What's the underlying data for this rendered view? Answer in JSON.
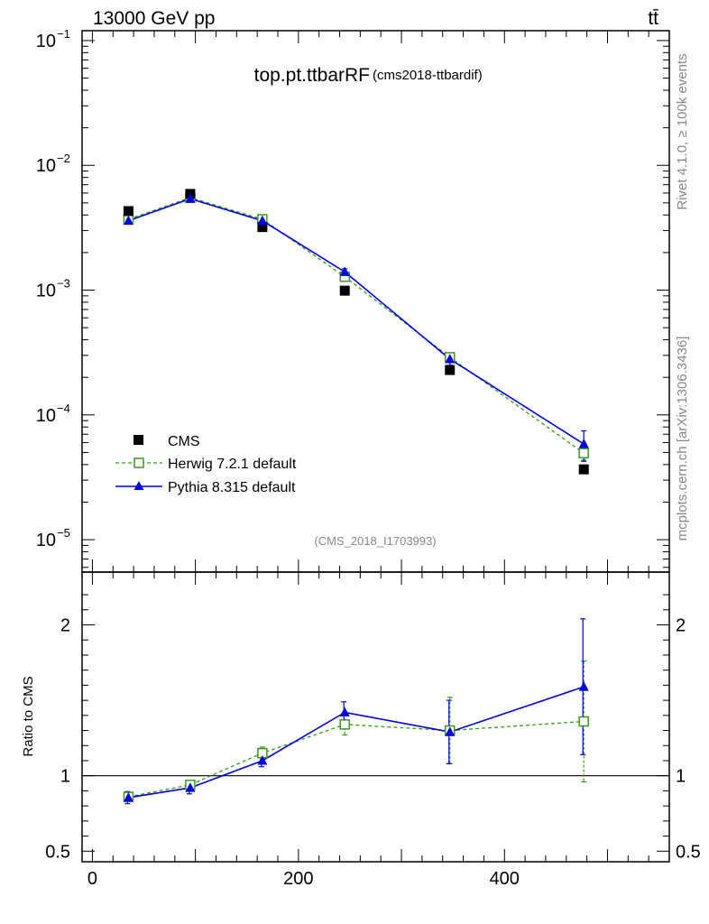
{
  "header": {
    "energy_label": "13000 GeV pp",
    "process_label": "tt̄"
  },
  "side_labels": {
    "rivet": "Rivet 4.1.0, ≥ 100k events",
    "mcplots": "mcplots.cern.ch [arXiv:1306.3436]"
  },
  "chart_data": [
    {
      "panel": "main",
      "type": "line",
      "yscale": "log",
      "title": "top.pt.ttbarRF",
      "subtitle": "(cms2018-ttbardif)",
      "watermark": "(CMS_2018_I1703993)",
      "xlim": [
        -10,
        560
      ],
      "ylim": [
        5.5e-06,
        0.12
      ],
      "ytick_values": [
        1e-05,
        0.0001,
        0.001,
        0.01,
        0.1
      ],
      "ytick_mantissa": "10",
      "ytick_exponents": [
        "−5",
        "−4",
        "−3",
        "−2",
        "−1"
      ],
      "legend_position": "lower-left",
      "series": [
        {
          "name": "CMS",
          "style": "marker-square-filled",
          "color": "#000000",
          "x": [
            35,
            95,
            165,
            245,
            347,
            477
          ],
          "y": [
            0.0043,
            0.0059,
            0.0032,
            0.00099,
            0.000229,
            3.66e-05
          ]
        },
        {
          "name": "Herwig 7.2.1 default",
          "style": "dashed-open-square",
          "color": "#3d9a1f",
          "x": [
            35,
            95,
            165,
            245,
            347,
            477
          ],
          "y": [
            0.0037,
            0.0055,
            0.0037,
            0.00128,
            0.00029,
            4.94e-05
          ],
          "err": [
            0.0001,
            0.0001,
            0.0001,
            5e-05,
            1.5e-05,
            6e-06
          ]
        },
        {
          "name": "Pythia 8.315 default",
          "style": "solid-triangle",
          "color": "#0000dd",
          "x": [
            35,
            95,
            165,
            245,
            347,
            477
          ],
          "y": [
            0.0036,
            0.0054,
            0.0036,
            0.0014,
            0.00028,
            5.85e-05
          ],
          "err": [
            0.0001,
            0.0001,
            0.0001,
            8e-05,
            3e-05,
            1.6e-05
          ]
        }
      ]
    },
    {
      "panel": "ratio",
      "type": "line",
      "ylabel": "Ratio to CMS",
      "xlim": [
        -10,
        560
      ],
      "ylim": [
        0.43,
        2.35
      ],
      "yticks": [
        0.5,
        1,
        2
      ],
      "ytick_labels": [
        "0.5",
        "1",
        "2"
      ],
      "xticks": [
        0,
        200,
        400
      ],
      "xtick_labels": [
        "0",
        "200",
        "400"
      ],
      "reference_line": 1,
      "series": [
        {
          "name": "Herwig 7.2.1 default",
          "style": "dashed-open-square",
          "color": "#3d9a1f",
          "x": [
            35,
            95,
            165,
            245,
            347,
            477
          ],
          "y": [
            0.86,
            0.94,
            1.15,
            1.34,
            1.3,
            1.36
          ],
          "err": [
            0.03,
            0.03,
            0.04,
            0.07,
            0.22,
            0.4
          ]
        },
        {
          "name": "Pythia 8.315 default",
          "style": "solid-triangle",
          "color": "#0000dd",
          "x": [
            35,
            95,
            165,
            245,
            347,
            477
          ],
          "y": [
            0.855,
            0.92,
            1.1,
            1.42,
            1.29,
            1.59
          ],
          "err": [
            0.04,
            0.04,
            0.04,
            0.07,
            0.21,
            0.45
          ]
        }
      ]
    }
  ]
}
